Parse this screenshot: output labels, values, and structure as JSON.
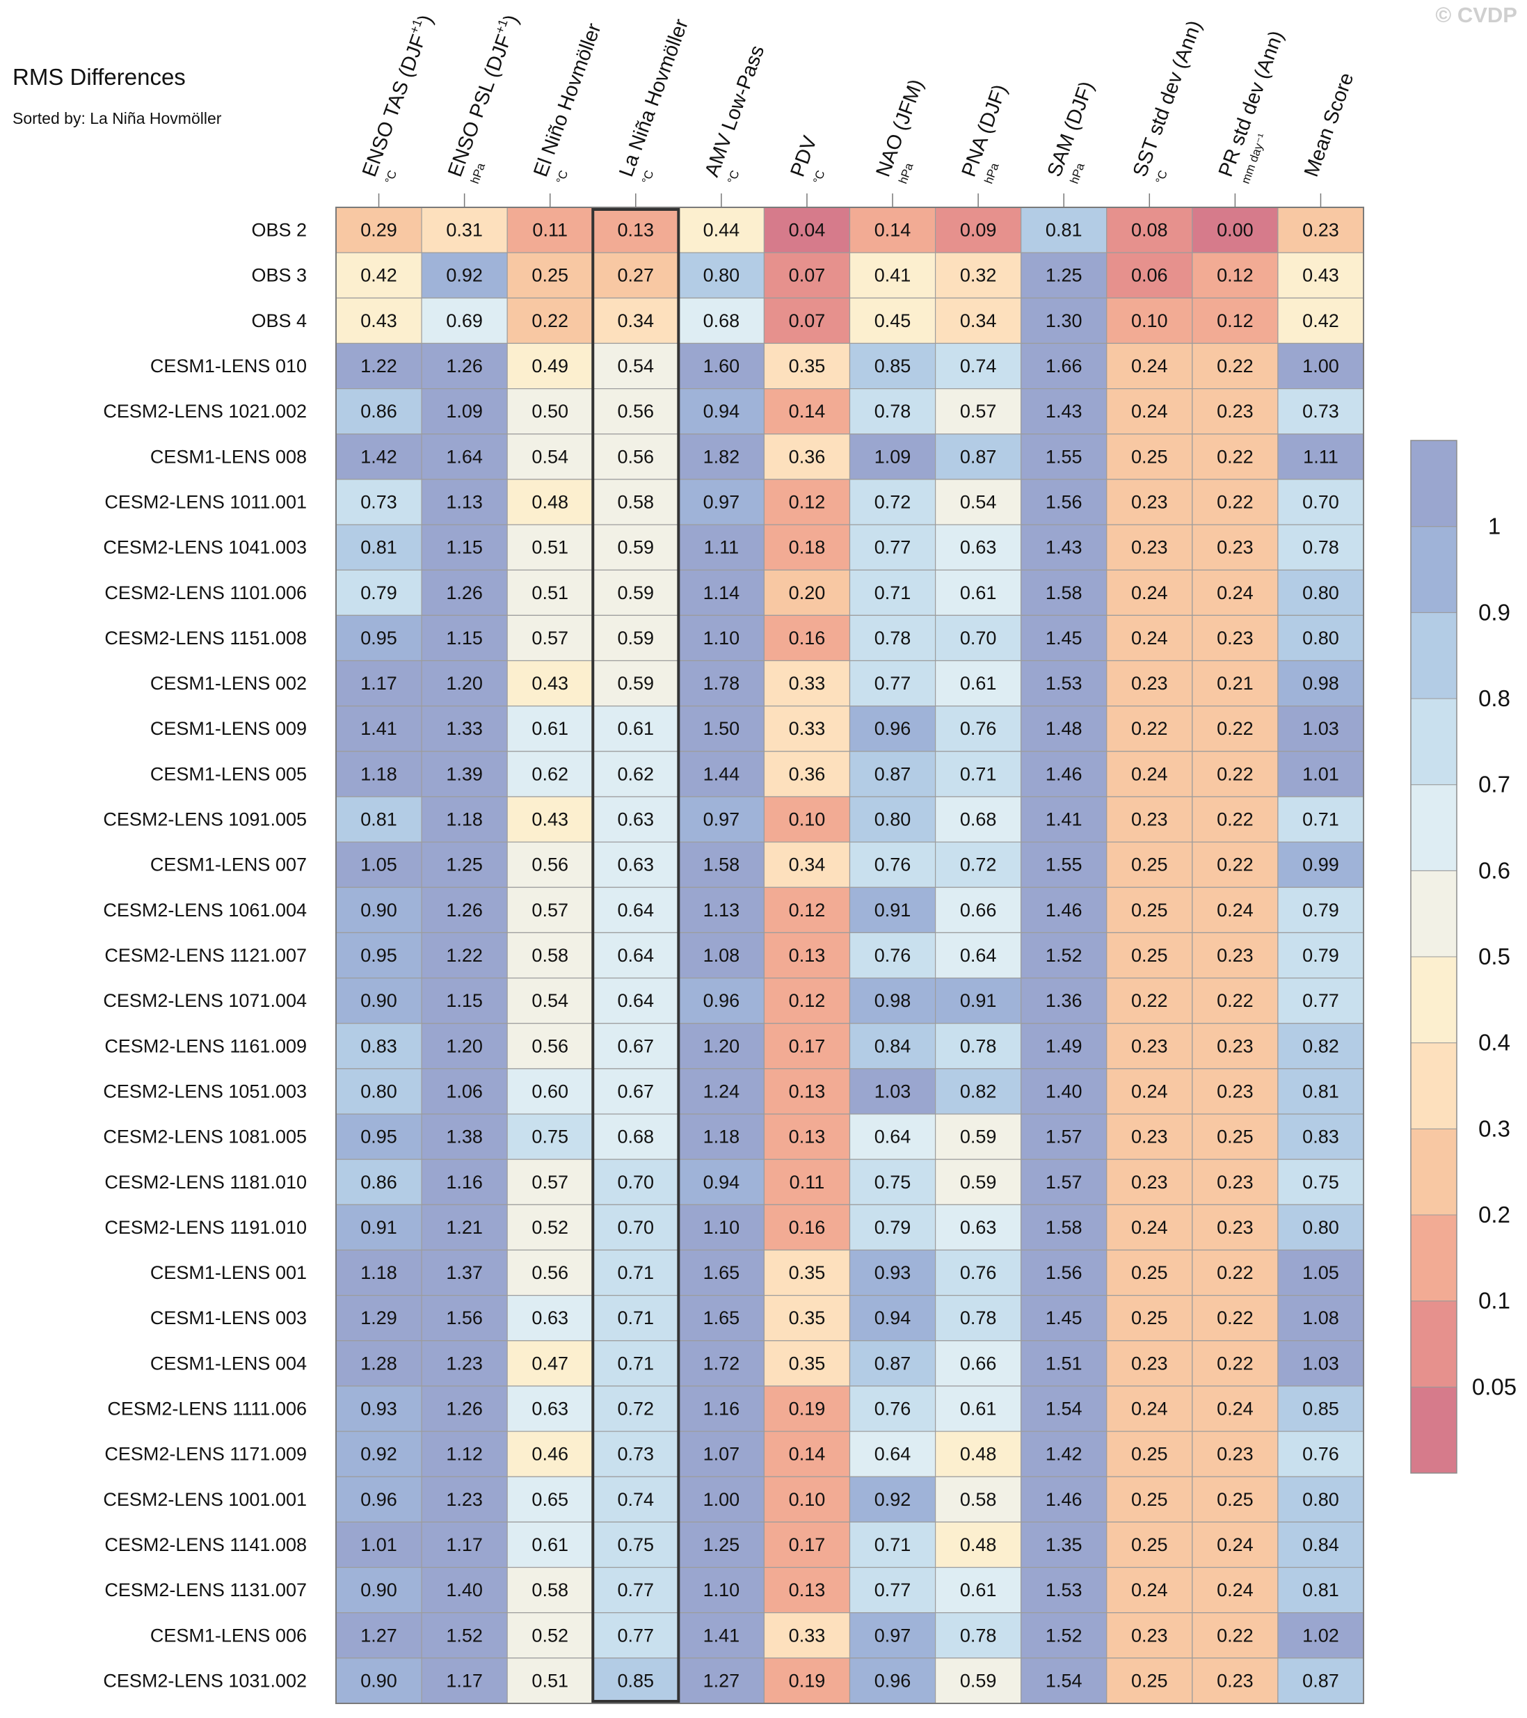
{
  "chart_data": {
    "type": "heatmap",
    "title": "RMS Differences",
    "subtitle": "Sorted by: La Niña Hovmöller",
    "copyright": "© CVDP",
    "highlighted_column": "La Niña Hovmöller",
    "columns": [
      {
        "name": "ENSO TAS (DJF",
        "sup": "+1",
        "tail": ")",
        "unit": "°C"
      },
      {
        "name": "ENSO PSL (DJF",
        "sup": "+1",
        "tail": ")",
        "unit": "hPa"
      },
      {
        "name": "El Niño Hovmöller",
        "sup": "",
        "tail": "",
        "unit": "°C"
      },
      {
        "name": "La Niña Hovmöller",
        "sup": "",
        "tail": "",
        "unit": "°C"
      },
      {
        "name": "AMV Low-Pass",
        "sup": "",
        "tail": "",
        "unit": "°C"
      },
      {
        "name": "PDV",
        "sup": "",
        "tail": "",
        "unit": "°C"
      },
      {
        "name": "NAO (JFM)",
        "sup": "",
        "tail": "",
        "unit": "hPa"
      },
      {
        "name": "PNA (DJF)",
        "sup": "",
        "tail": "",
        "unit": "hPa"
      },
      {
        "name": "SAM (DJF)",
        "sup": "",
        "tail": "",
        "unit": "hPa"
      },
      {
        "name": "SST std dev (Ann)",
        "sup": "",
        "tail": "",
        "unit": "°C"
      },
      {
        "name": "PR std dev (Ann)",
        "sup": "",
        "tail": "",
        "unit": "mm day⁻¹"
      },
      {
        "name": "Mean Score",
        "sup": "",
        "tail": "",
        "unit": ""
      }
    ],
    "rows": [
      {
        "label": "OBS 2",
        "values": [
          "0.29",
          "0.31",
          "0.11",
          "0.13",
          "0.44",
          "0.04",
          "0.14",
          "0.09",
          "0.81",
          "0.08",
          "0.00",
          "0.23"
        ]
      },
      {
        "label": "OBS 3",
        "values": [
          "0.42",
          "0.92",
          "0.25",
          "0.27",
          "0.80",
          "0.07",
          "0.41",
          "0.32",
          "1.25",
          "0.06",
          "0.12",
          "0.43"
        ]
      },
      {
        "label": "OBS 4",
        "values": [
          "0.43",
          "0.69",
          "0.22",
          "0.34",
          "0.68",
          "0.07",
          "0.45",
          "0.34",
          "1.30",
          "0.10",
          "0.12",
          "0.42"
        ]
      },
      {
        "label": "CESM1-LENS 010",
        "values": [
          "1.22",
          "1.26",
          "0.49",
          "0.54",
          "1.60",
          "0.35",
          "0.85",
          "0.74",
          "1.66",
          "0.24",
          "0.22",
          "1.00"
        ]
      },
      {
        "label": "CESM2-LENS 1021.002",
        "values": [
          "0.86",
          "1.09",
          "0.50",
          "0.56",
          "0.94",
          "0.14",
          "0.78",
          "0.57",
          "1.43",
          "0.24",
          "0.23",
          "0.73"
        ]
      },
      {
        "label": "CESM1-LENS 008",
        "values": [
          "1.42",
          "1.64",
          "0.54",
          "0.56",
          "1.82",
          "0.36",
          "1.09",
          "0.87",
          "1.55",
          "0.25",
          "0.22",
          "1.11"
        ]
      },
      {
        "label": "CESM2-LENS 1011.001",
        "values": [
          "0.73",
          "1.13",
          "0.48",
          "0.58",
          "0.97",
          "0.12",
          "0.72",
          "0.54",
          "1.56",
          "0.23",
          "0.22",
          "0.70"
        ]
      },
      {
        "label": "CESM2-LENS 1041.003",
        "values": [
          "0.81",
          "1.15",
          "0.51",
          "0.59",
          "1.11",
          "0.18",
          "0.77",
          "0.63",
          "1.43",
          "0.23",
          "0.23",
          "0.78"
        ]
      },
      {
        "label": "CESM2-LENS 1101.006",
        "values": [
          "0.79",
          "1.26",
          "0.51",
          "0.59",
          "1.14",
          "0.20",
          "0.71",
          "0.61",
          "1.58",
          "0.24",
          "0.24",
          "0.80"
        ]
      },
      {
        "label": "CESM2-LENS 1151.008",
        "values": [
          "0.95",
          "1.15",
          "0.57",
          "0.59",
          "1.10",
          "0.16",
          "0.78",
          "0.70",
          "1.45",
          "0.24",
          "0.23",
          "0.80"
        ]
      },
      {
        "label": "CESM1-LENS 002",
        "values": [
          "1.17",
          "1.20",
          "0.43",
          "0.59",
          "1.78",
          "0.33",
          "0.77",
          "0.61",
          "1.53",
          "0.23",
          "0.21",
          "0.98"
        ]
      },
      {
        "label": "CESM1-LENS 009",
        "values": [
          "1.41",
          "1.33",
          "0.61",
          "0.61",
          "1.50",
          "0.33",
          "0.96",
          "0.76",
          "1.48",
          "0.22",
          "0.22",
          "1.03"
        ]
      },
      {
        "label": "CESM1-LENS 005",
        "values": [
          "1.18",
          "1.39",
          "0.62",
          "0.62",
          "1.44",
          "0.36",
          "0.87",
          "0.71",
          "1.46",
          "0.24",
          "0.22",
          "1.01"
        ]
      },
      {
        "label": "CESM2-LENS 1091.005",
        "values": [
          "0.81",
          "1.18",
          "0.43",
          "0.63",
          "0.97",
          "0.10",
          "0.80",
          "0.68",
          "1.41",
          "0.23",
          "0.22",
          "0.71"
        ]
      },
      {
        "label": "CESM1-LENS 007",
        "values": [
          "1.05",
          "1.25",
          "0.56",
          "0.63",
          "1.58",
          "0.34",
          "0.76",
          "0.72",
          "1.55",
          "0.25",
          "0.22",
          "0.99"
        ]
      },
      {
        "label": "CESM2-LENS 1061.004",
        "values": [
          "0.90",
          "1.26",
          "0.57",
          "0.64",
          "1.13",
          "0.12",
          "0.91",
          "0.66",
          "1.46",
          "0.25",
          "0.24",
          "0.79"
        ]
      },
      {
        "label": "CESM2-LENS 1121.007",
        "values": [
          "0.95",
          "1.22",
          "0.58",
          "0.64",
          "1.08",
          "0.13",
          "0.76",
          "0.64",
          "1.52",
          "0.25",
          "0.23",
          "0.79"
        ]
      },
      {
        "label": "CESM2-LENS 1071.004",
        "values": [
          "0.90",
          "1.15",
          "0.54",
          "0.64",
          "0.96",
          "0.12",
          "0.98",
          "0.91",
          "1.36",
          "0.22",
          "0.22",
          "0.77"
        ]
      },
      {
        "label": "CESM2-LENS 1161.009",
        "values": [
          "0.83",
          "1.20",
          "0.56",
          "0.67",
          "1.20",
          "0.17",
          "0.84",
          "0.78",
          "1.49",
          "0.23",
          "0.23",
          "0.82"
        ]
      },
      {
        "label": "CESM2-LENS 1051.003",
        "values": [
          "0.80",
          "1.06",
          "0.60",
          "0.67",
          "1.24",
          "0.13",
          "1.03",
          "0.82",
          "1.40",
          "0.24",
          "0.23",
          "0.81"
        ]
      },
      {
        "label": "CESM2-LENS 1081.005",
        "values": [
          "0.95",
          "1.38",
          "0.75",
          "0.68",
          "1.18",
          "0.13",
          "0.64",
          "0.59",
          "1.57",
          "0.23",
          "0.25",
          "0.83"
        ]
      },
      {
        "label": "CESM2-LENS 1181.010",
        "values": [
          "0.86",
          "1.16",
          "0.57",
          "0.70",
          "0.94",
          "0.11",
          "0.75",
          "0.59",
          "1.57",
          "0.23",
          "0.23",
          "0.75"
        ]
      },
      {
        "label": "CESM2-LENS 1191.010",
        "values": [
          "0.91",
          "1.21",
          "0.52",
          "0.70",
          "1.10",
          "0.16",
          "0.79",
          "0.63",
          "1.58",
          "0.24",
          "0.23",
          "0.80"
        ]
      },
      {
        "label": "CESM1-LENS 001",
        "values": [
          "1.18",
          "1.37",
          "0.56",
          "0.71",
          "1.65",
          "0.35",
          "0.93",
          "0.76",
          "1.56",
          "0.25",
          "0.22",
          "1.05"
        ]
      },
      {
        "label": "CESM1-LENS 003",
        "values": [
          "1.29",
          "1.56",
          "0.63",
          "0.71",
          "1.65",
          "0.35",
          "0.94",
          "0.78",
          "1.45",
          "0.25",
          "0.22",
          "1.08"
        ]
      },
      {
        "label": "CESM1-LENS 004",
        "values": [
          "1.28",
          "1.23",
          "0.47",
          "0.71",
          "1.72",
          "0.35",
          "0.87",
          "0.66",
          "1.51",
          "0.23",
          "0.22",
          "1.03"
        ]
      },
      {
        "label": "CESM2-LENS 1111.006",
        "values": [
          "0.93",
          "1.26",
          "0.63",
          "0.72",
          "1.16",
          "0.19",
          "0.76",
          "0.61",
          "1.54",
          "0.24",
          "0.24",
          "0.85"
        ]
      },
      {
        "label": "CESM2-LENS 1171.009",
        "values": [
          "0.92",
          "1.12",
          "0.46",
          "0.73",
          "1.07",
          "0.14",
          "0.64",
          "0.48",
          "1.42",
          "0.25",
          "0.23",
          "0.76"
        ]
      },
      {
        "label": "CESM2-LENS 1001.001",
        "values": [
          "0.96",
          "1.23",
          "0.65",
          "0.74",
          "1.00",
          "0.10",
          "0.92",
          "0.58",
          "1.46",
          "0.25",
          "0.25",
          "0.80"
        ]
      },
      {
        "label": "CESM2-LENS 1141.008",
        "values": [
          "1.01",
          "1.17",
          "0.61",
          "0.75",
          "1.25",
          "0.17",
          "0.71",
          "0.48",
          "1.35",
          "0.25",
          "0.24",
          "0.84"
        ]
      },
      {
        "label": "CESM2-LENS 1131.007",
        "values": [
          "0.90",
          "1.40",
          "0.58",
          "0.77",
          "1.10",
          "0.13",
          "0.77",
          "0.61",
          "1.53",
          "0.24",
          "0.24",
          "0.81"
        ]
      },
      {
        "label": "CESM1-LENS 006",
        "values": [
          "1.27",
          "1.52",
          "0.52",
          "0.77",
          "1.41",
          "0.33",
          "0.97",
          "0.78",
          "1.52",
          "0.23",
          "0.22",
          "1.02"
        ]
      },
      {
        "label": "CESM2-LENS 1031.002",
        "values": [
          "0.90",
          "1.17",
          "0.51",
          "0.85",
          "1.27",
          "0.19",
          "0.96",
          "0.59",
          "1.54",
          "0.25",
          "0.23",
          "0.87"
        ]
      }
    ],
    "colorbar": {
      "levels": [
        "0.05",
        "0.1",
        "0.2",
        "0.3",
        "0.4",
        "0.5",
        "0.6",
        "0.7",
        "0.8",
        "0.9",
        "1"
      ],
      "bin_edges": [
        0.05,
        0.1,
        0.2,
        0.3,
        0.4,
        0.5,
        0.6,
        0.7,
        0.8,
        0.9,
        1.0
      ],
      "colors": [
        "#d67b8b",
        "#e6918d",
        "#f2ab94",
        "#f8c8a3",
        "#fde0bd",
        "#fcefcf",
        "#f2f1e6",
        "#deedf3",
        "#c9e0ee",
        "#b3cce5",
        "#9fb3d8",
        "#9aa6cf"
      ]
    }
  }
}
